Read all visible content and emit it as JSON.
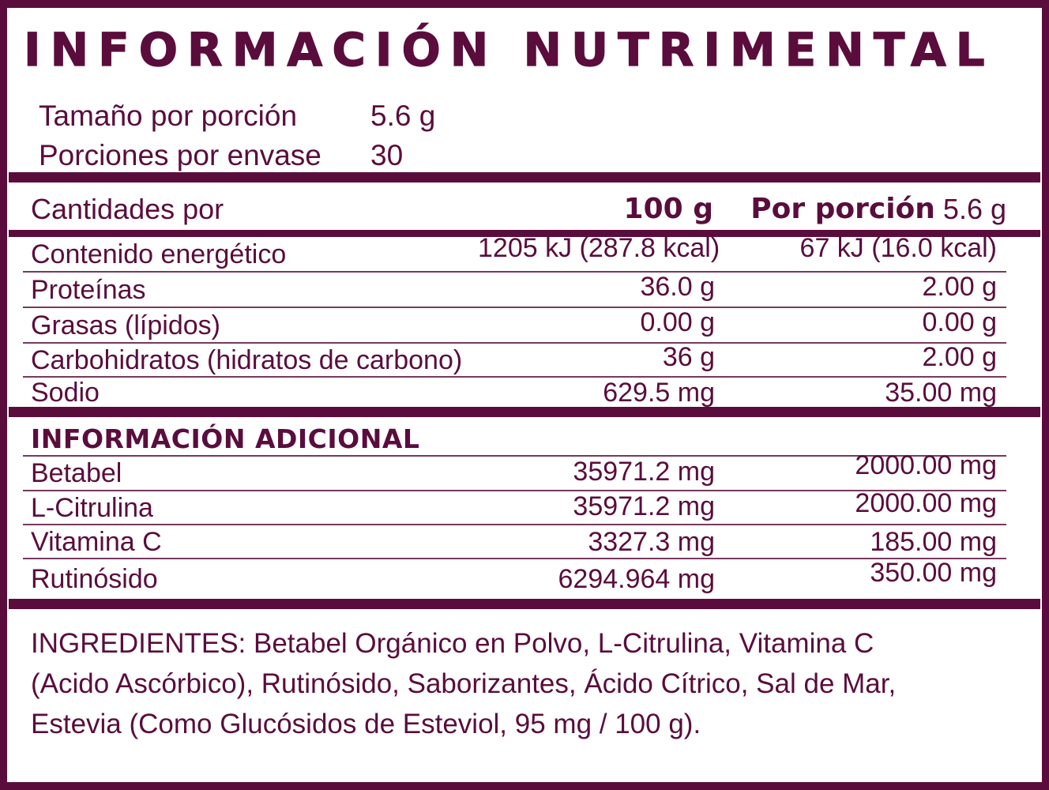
{
  "panel": {
    "accent_color": "#5A0D3C"
  },
  "header": {
    "title": "INFORMACIÓN NUTRIMENTAL",
    "serving_rows": [
      {
        "label": "Tamaño por porción",
        "value": "5.6 g"
      },
      {
        "label": "Porciones por envase",
        "value": "30"
      }
    ]
  },
  "nutrition_table": {
    "header": {
      "label": "Cantidades por",
      "per_100g": "100 g",
      "per_portion_label": "Por porción",
      "per_portion_size": "5.6 g"
    },
    "rows": [
      {
        "label": "Contenido energético",
        "per_100g": "1205 kJ (287.8 kcal)",
        "per_portion": "67 kJ (16.0 kcal)"
      },
      {
        "label": "Proteínas",
        "per_100g": "36.0 g",
        "per_portion": "2.00 g"
      },
      {
        "label": "Grasas (lípidos)",
        "per_100g": "0.00 g",
        "per_portion": "0.00 g"
      },
      {
        "label": "Carbohidratos (hidratos de carbono)",
        "per_100g": "36 g",
        "per_portion": "2.00 g"
      },
      {
        "label": "Sodio",
        "per_100g": "629.5 mg",
        "per_portion": "35.00 mg"
      }
    ]
  },
  "additional_info": {
    "title": "INFORMACIÓN ADICIONAL",
    "rows": [
      {
        "label": "Betabel",
        "per_100g": "35971.2 mg",
        "per_portion": "2000.00 mg"
      },
      {
        "label": "L-Citrulina",
        "per_100g": "35971.2 mg",
        "per_portion": "2000.00 mg"
      },
      {
        "label": "Vitamina C",
        "per_100g": "3327.3 mg",
        "per_portion": "185.00 mg"
      },
      {
        "label": "Rutinósido",
        "per_100g": "6294.964 mg",
        "per_portion": "350.00 mg"
      }
    ]
  },
  "ingredients": {
    "lines": [
      "INGREDIENTES: Betabel Orgánico en Polvo, L-Citrulina, Vitamina C",
      "(Acido Ascórbico), Rutinósido, Saborizantes, Ácido Cítrico, Sal de Mar,",
      "Estevia (Como Glucósidos de Esteviol, 95 mg / 100 g)."
    ]
  }
}
